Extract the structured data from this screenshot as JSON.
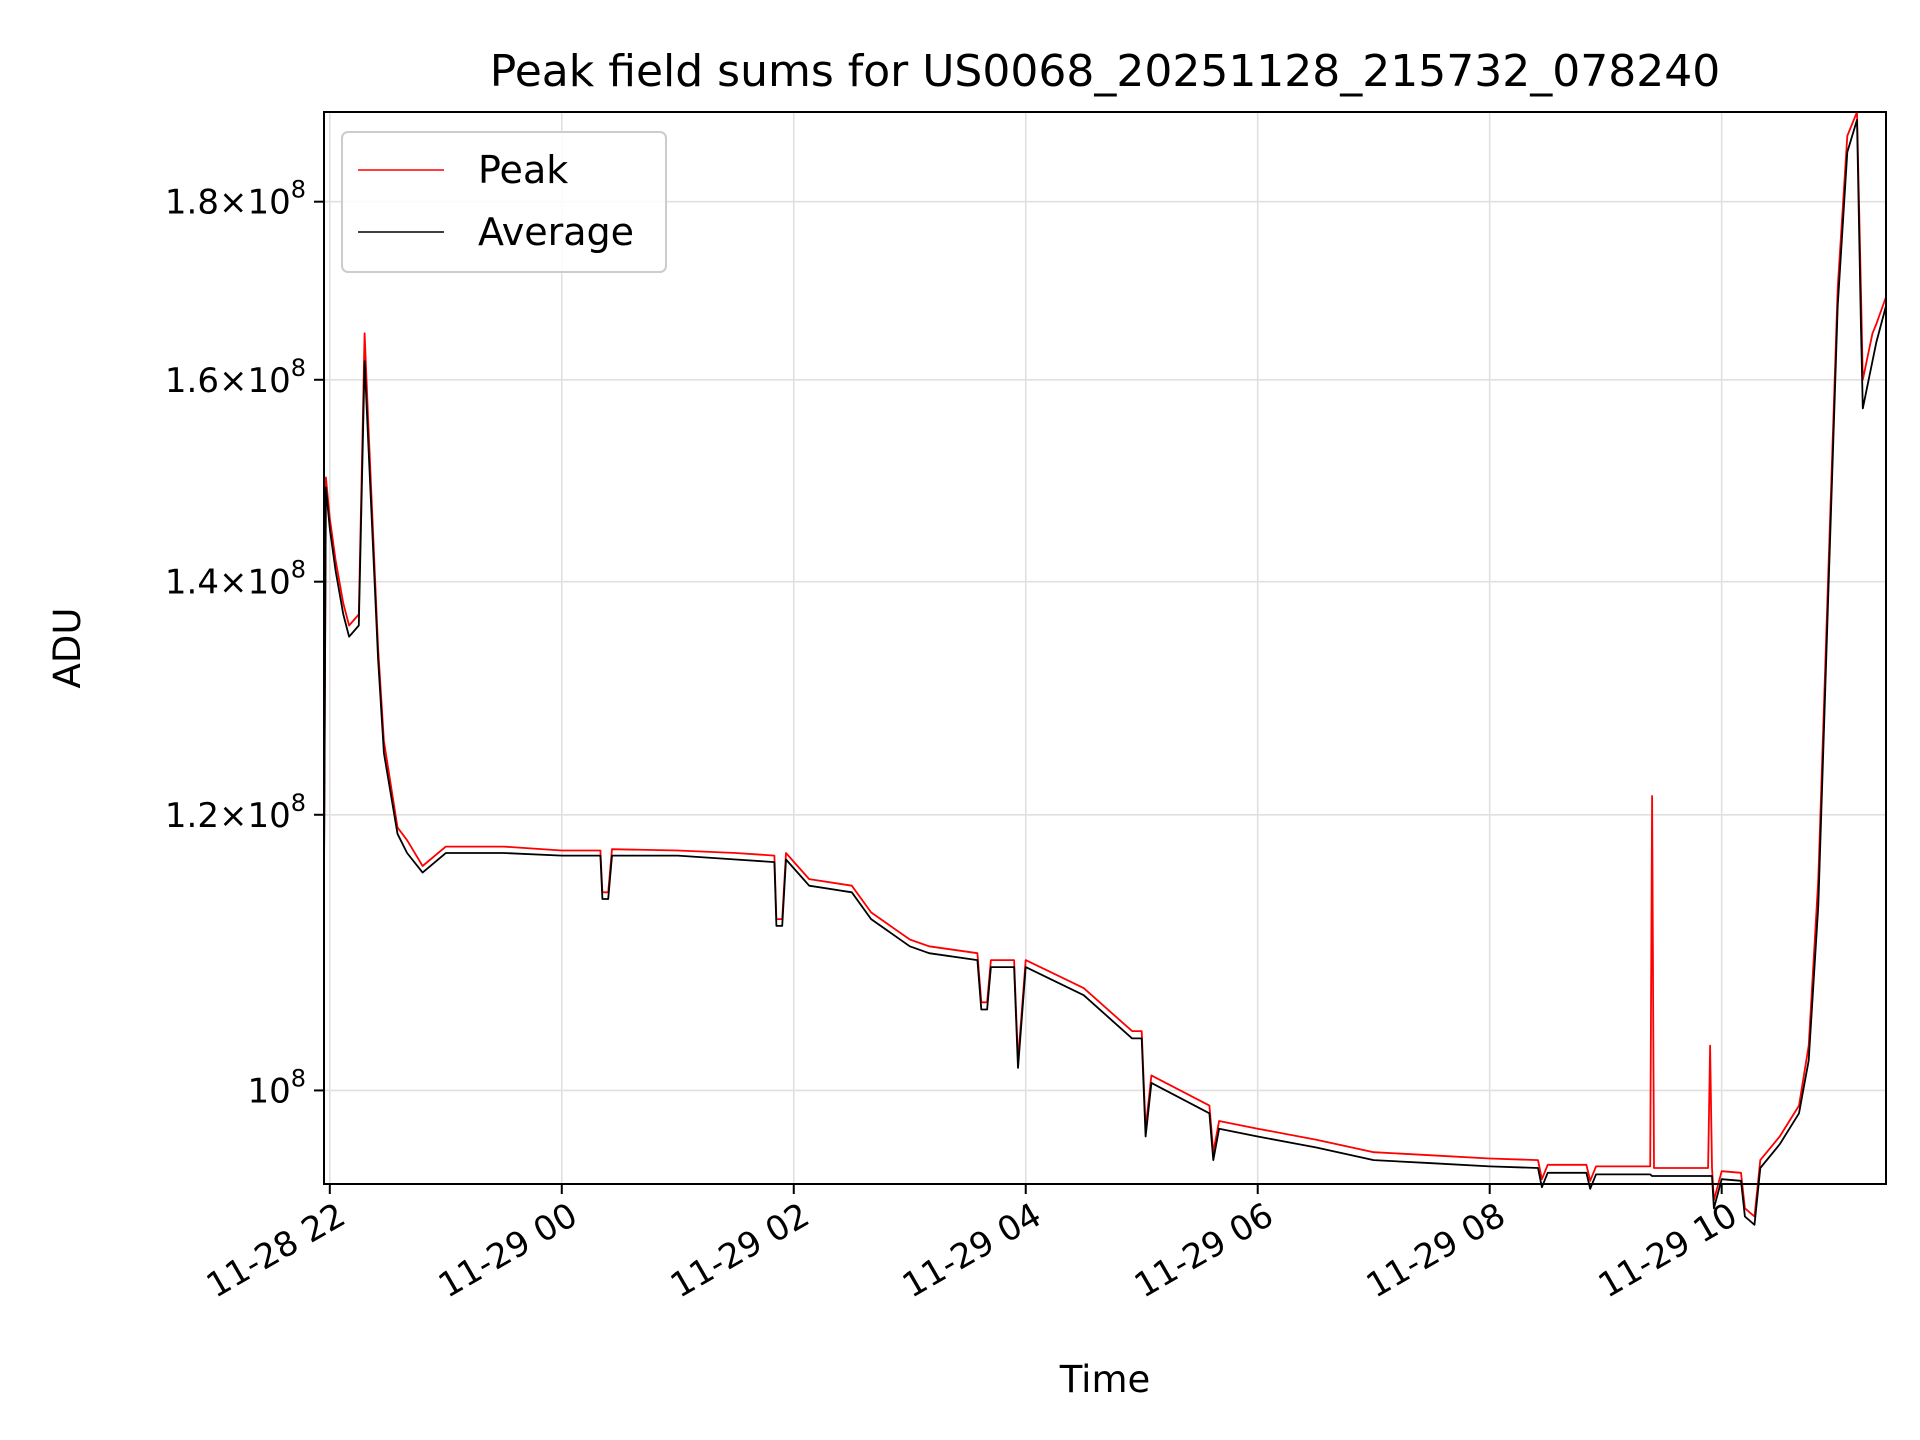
{
  "chart_data": {
    "type": "line",
    "title": "Peak field sums for US0068_20251128_215732_078240",
    "xlabel": "Time",
    "ylabel": "ADU",
    "yscale": "log",
    "grid": true,
    "legend_position": "top-left",
    "xlim": [
      "2025-11-28 21:57",
      "2025-11-29 11:25"
    ],
    "ylim": [
      94000000,
      191000000
    ],
    "x_ticks": [
      "11-28 22",
      "11-29 00",
      "11-29 02",
      "11-29 04",
      "11-29 06",
      "11-29 08",
      "11-29 10"
    ],
    "x_tick_times": [
      "2025-11-28 22:00",
      "2025-11-29 00:00",
      "2025-11-29 02:00",
      "2025-11-29 04:00",
      "2025-11-29 06:00",
      "2025-11-29 08:00",
      "2025-11-29 10:00"
    ],
    "y_ticks": [
      {
        "value": 100000000,
        "mantissa": "",
        "exponent": "8"
      },
      {
        "value": 120000000,
        "mantissa": "1.2",
        "exponent": "8"
      },
      {
        "value": 140000000,
        "mantissa": "1.4",
        "exponent": "8"
      },
      {
        "value": 160000000,
        "mantissa": "1.6",
        "exponent": "8"
      },
      {
        "value": 180000000,
        "mantissa": "1.8",
        "exponent": "8"
      }
    ],
    "series": [
      {
        "name": "Peak",
        "color": "#ff0000",
        "x": [
          "2025-11-28 21:57",
          "2025-11-28 21:58",
          "2025-11-28 22:00",
          "2025-11-28 22:03",
          "2025-11-28 22:07",
          "2025-11-28 22:10",
          "2025-11-28 22:15",
          "2025-11-28 22:18",
          "2025-11-28 22:20",
          "2025-11-28 22:25",
          "2025-11-28 22:28",
          "2025-11-28 22:35",
          "2025-11-28 22:40",
          "2025-11-28 22:48",
          "2025-11-28 23:00",
          "2025-11-28 23:30",
          "2025-11-29 00:00",
          "2025-11-29 00:20",
          "2025-11-29 00:21",
          "2025-11-29 00:24",
          "2025-11-29 00:26",
          "2025-11-29 01:00",
          "2025-11-29 01:30",
          "2025-11-29 01:50",
          "2025-11-29 01:51",
          "2025-11-29 01:54",
          "2025-11-29 01:56",
          "2025-11-29 02:05",
          "2025-11-29 02:08",
          "2025-11-29 02:30",
          "2025-11-29 02:40",
          "2025-11-29 03:00",
          "2025-11-29 03:10",
          "2025-11-29 03:35",
          "2025-11-29 03:37",
          "2025-11-29 03:40",
          "2025-11-29 03:42",
          "2025-11-29 03:54",
          "2025-11-29 03:56",
          "2025-11-29 04:00",
          "2025-11-29 04:30",
          "2025-11-29 04:55",
          "2025-11-29 05:00",
          "2025-11-29 05:02",
          "2025-11-29 05:05",
          "2025-11-29 05:35",
          "2025-11-29 05:37",
          "2025-11-29 05:40",
          "2025-11-29 06:00",
          "2025-11-29 06:30",
          "2025-11-29 07:00",
          "2025-11-29 07:30",
          "2025-11-29 08:00",
          "2025-11-29 08:25",
          "2025-11-29 08:27",
          "2025-11-29 08:30",
          "2025-11-29 08:50",
          "2025-11-29 08:52",
          "2025-11-29 08:55",
          "2025-11-29 09:23",
          "2025-11-29 09:24",
          "2025-11-29 09:25",
          "2025-11-29 09:53",
          "2025-11-29 09:54",
          "2025-11-29 09:55",
          "2025-11-29 09:56",
          "2025-11-29 10:00",
          "2025-11-29 10:10",
          "2025-11-29 10:12",
          "2025-11-29 10:17",
          "2025-11-29 10:20",
          "2025-11-29 10:30",
          "2025-11-29 10:40",
          "2025-11-29 10:45",
          "2025-11-29 10:50",
          "2025-11-29 10:55",
          "2025-11-29 11:00",
          "2025-11-29 11:05",
          "2025-11-29 11:10",
          "2025-11-29 11:12",
          "2025-11-29 11:13",
          "2025-11-29 11:15",
          "2025-11-29 11:18",
          "2025-11-29 11:20",
          "2025-11-29 11:25"
        ],
        "y": [
          116000000,
          150000000,
          146000000,
          142000000,
          138000000,
          136000000,
          137000000,
          165000000,
          155000000,
          134000000,
          126000000,
          119000000,
          118000000,
          116000000,
          117500000,
          117500000,
          117200000,
          117200000,
          114000000,
          114000000,
          117300000,
          117200000,
          117000000,
          116800000,
          112000000,
          112000000,
          117000000,
          115500000,
          115000000,
          114500000,
          112500000,
          110500000,
          110000000,
          109500000,
          106000000,
          106000000,
          109000000,
          109000000,
          102000000,
          109000000,
          107000000,
          104000000,
          104000000,
          97500000,
          101000000,
          99000000,
          96000000,
          98000000,
          97500000,
          96800000,
          96000000,
          95800000,
          95600000,
          95500000,
          94300000,
          95200000,
          95200000,
          94200000,
          95100000,
          95100000,
          121500000,
          95000000,
          95000000,
          103000000,
          95000000,
          93000000,
          94800000,
          94700000,
          92500000,
          92000000,
          95500000,
          97000000,
          99000000,
          103000000,
          115000000,
          140000000,
          170000000,
          188000000,
          191000000,
          170000000,
          160000000,
          162000000,
          165000000,
          166000000,
          169000000
        ]
      },
      {
        "name": "Average",
        "color": "#000000",
        "x": [
          "2025-11-28 21:57",
          "2025-11-28 21:58",
          "2025-11-28 22:00",
          "2025-11-28 22:03",
          "2025-11-28 22:07",
          "2025-11-28 22:10",
          "2025-11-28 22:15",
          "2025-11-28 22:18",
          "2025-11-28 22:20",
          "2025-11-28 22:25",
          "2025-11-28 22:28",
          "2025-11-28 22:35",
          "2025-11-28 22:40",
          "2025-11-28 22:48",
          "2025-11-28 23:00",
          "2025-11-28 23:30",
          "2025-11-29 00:00",
          "2025-11-29 00:20",
          "2025-11-29 00:21",
          "2025-11-29 00:24",
          "2025-11-29 00:26",
          "2025-11-29 01:00",
          "2025-11-29 01:30",
          "2025-11-29 01:50",
          "2025-11-29 01:51",
          "2025-11-29 01:54",
          "2025-11-29 01:56",
          "2025-11-29 02:05",
          "2025-11-29 02:08",
          "2025-11-29 02:30",
          "2025-11-29 02:40",
          "2025-11-29 03:00",
          "2025-11-29 03:10",
          "2025-11-29 03:35",
          "2025-11-29 03:37",
          "2025-11-29 03:40",
          "2025-11-29 03:42",
          "2025-11-29 03:54",
          "2025-11-29 03:56",
          "2025-11-29 04:00",
          "2025-11-29 04:30",
          "2025-11-29 04:55",
          "2025-11-29 05:00",
          "2025-11-29 05:02",
          "2025-11-29 05:05",
          "2025-11-29 05:35",
          "2025-11-29 05:37",
          "2025-11-29 05:40",
          "2025-11-29 06:00",
          "2025-11-29 06:30",
          "2025-11-29 07:00",
          "2025-11-29 07:30",
          "2025-11-29 08:00",
          "2025-11-29 08:25",
          "2025-11-29 08:27",
          "2025-11-29 08:30",
          "2025-11-29 08:50",
          "2025-11-29 08:52",
          "2025-11-29 08:55",
          "2025-11-29 09:23",
          "2025-11-29 09:24",
          "2025-11-29 09:25",
          "2025-11-29 09:53",
          "2025-11-29 09:54",
          "2025-11-29 09:55",
          "2025-11-29 09:56",
          "2025-11-29 10:00",
          "2025-11-29 10:10",
          "2025-11-29 10:12",
          "2025-11-29 10:17",
          "2025-11-29 10:20",
          "2025-11-29 10:30",
          "2025-11-29 10:40",
          "2025-11-29 10:45",
          "2025-11-29 10:50",
          "2025-11-29 10:55",
          "2025-11-29 11:00",
          "2025-11-29 11:05",
          "2025-11-29 11:10",
          "2025-11-29 11:12",
          "2025-11-29 11:13",
          "2025-11-29 11:15",
          "2025-11-29 11:18",
          "2025-11-29 11:20",
          "2025-11-29 11:25"
        ],
        "y": [
          115000000,
          149000000,
          145000000,
          141000000,
          137000000,
          135000000,
          136000000,
          162000000,
          153000000,
          133000000,
          125000000,
          118500000,
          117000000,
          115500000,
          117000000,
          117000000,
          116800000,
          116800000,
          113500000,
          113500000,
          116800000,
          116800000,
          116500000,
          116300000,
          111500000,
          111500000,
          116500000,
          115000000,
          114500000,
          114000000,
          112000000,
          110000000,
          109500000,
          109000000,
          105500000,
          105500000,
          108500000,
          108500000,
          101500000,
          108500000,
          106500000,
          103500000,
          103500000,
          97000000,
          100500000,
          98500000,
          95500000,
          97500000,
          97000000,
          96300000,
          95500000,
          95300000,
          95100000,
          95000000,
          93800000,
          94700000,
          94700000,
          93700000,
          94600000,
          94600000,
          94500000,
          94500000,
          94500000,
          94500000,
          94500000,
          92500000,
          94300000,
          94200000,
          92000000,
          91500000,
          95000000,
          96500000,
          98500000,
          102000000,
          113000000,
          138000000,
          168000000,
          186000000,
          190000000,
          166000000,
          157000000,
          159000000,
          162000000,
          164000000,
          168000000
        ]
      }
    ]
  }
}
